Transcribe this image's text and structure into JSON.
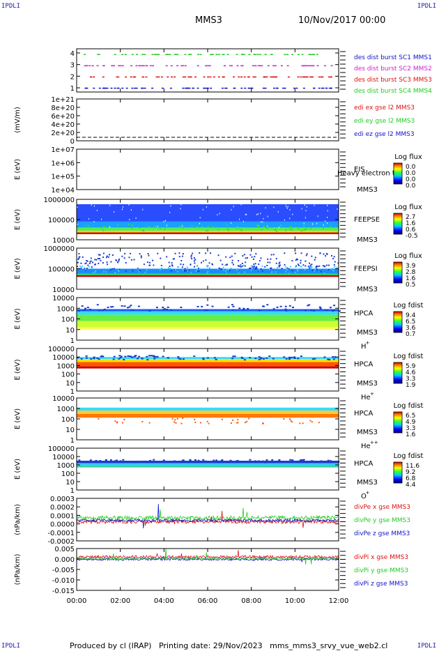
{
  "corner_label": "IPDLI",
  "header": {
    "spacecraft": "MMS3",
    "date_time": "10/Nov/2017 00:00"
  },
  "footer": {
    "text": "Produced by cl (IRAP)   Printing date: 29/Nov/2023   mms_mms3_srvy_vue_web2.cl"
  },
  "time_axis": {
    "ticks": [
      "00:00",
      "02:00",
      "04:00",
      "06:00",
      "08:00",
      "10:00",
      "12:00"
    ]
  },
  "colors": {
    "blue": "#1111cc",
    "magenta": "#cc22cc",
    "red": "#dd1111",
    "green": "#22cc22"
  },
  "panels": [
    {
      "id": "burst",
      "ylabel": "",
      "yticks": [
        "4",
        "3",
        "2",
        "1"
      ],
      "legend": [
        {
          "text": "des dist burst SC1 MMS1",
          "color": "#1111cc"
        },
        {
          "text": "des dist burst SC2 MMS2",
          "color": "#cc22cc"
        },
        {
          "text": "des dist burst SC3 MMS3",
          "color": "#dd1111"
        },
        {
          "text": "des dist burst SC4 MMS4",
          "color": "#22cc22"
        }
      ]
    },
    {
      "id": "edi",
      "ylabel": "(mV/m)",
      "yticks": [
        "1e+21",
        "8e+20",
        "6e+20",
        "4e+20",
        "2e+20",
        "0"
      ],
      "legend": [
        {
          "text": "edi ex gse l2 MMS3",
          "color": "#dd1111"
        },
        {
          "text": "edi ey gse l2 MMS3",
          "color": "#22cc22"
        },
        {
          "text": "edi ez gse l2 MMS3",
          "color": "#1111cc"
        }
      ]
    },
    {
      "id": "eis",
      "ylabel": "E (eV)",
      "yticks": [
        "1e+07",
        "1e+06",
        "1e+05",
        "1e+04"
      ],
      "instrument": "EIS",
      "overlay": "Heavy electron to",
      "sc": "MMS3",
      "cb_title": "Log flux",
      "cb_ticks": [
        "0.0",
        "0.0",
        "0.0",
        "0.0"
      ]
    },
    {
      "id": "feepse",
      "ylabel": "E (eV)",
      "yticks": [
        "1000000",
        "100000",
        "10000"
      ],
      "instrument": "FEEPSE",
      "sc": "MMS3",
      "cb_title": "Log flux",
      "cb_ticks": [
        "2.7",
        "1.6",
        "0.6",
        "-0.5"
      ]
    },
    {
      "id": "feepsi",
      "ylabel": "E (eV)",
      "yticks": [
        "1000000",
        "100000",
        "10000"
      ],
      "instrument": "FEEPSI",
      "sc": "MMS3",
      "cb_title": "Log flux",
      "cb_ticks": [
        "3.9",
        "2.8",
        "1.6",
        "0.5"
      ]
    },
    {
      "id": "hpca_h",
      "ylabel": "E (eV)",
      "yticks": [
        "10000",
        "1000",
        "100",
        "10",
        "1"
      ],
      "instrument": "HPCA",
      "sc": "MMS3",
      "species": "H",
      "species_sup": "+",
      "cb_title": "Log fdist",
      "cb_ticks": [
        "9.4",
        "6.5",
        "3.6",
        "0.7"
      ]
    },
    {
      "id": "hpca_hep",
      "ylabel": "E (eV)",
      "yticks": [
        "100000",
        "10000",
        "1000",
        "100",
        "10",
        "1"
      ],
      "instrument": "HPCA",
      "sc": "MMS3",
      "species": "He",
      "species_sup": "+",
      "cb_title": "Log fdist",
      "cb_ticks": [
        "5.9",
        "4.6",
        "3.3",
        "1.9"
      ]
    },
    {
      "id": "hpca_hepp",
      "ylabel": "E (eV)",
      "yticks": [
        "10000",
        "1000",
        "100",
        "10",
        "1"
      ],
      "instrument": "HPCA",
      "sc": "MMS3",
      "species": "He",
      "species_sup": "++",
      "cb_title": "Log fdist",
      "cb_ticks": [
        "6.5",
        "4.9",
        "3.3",
        "1.6"
      ]
    },
    {
      "id": "hpca_o",
      "ylabel": "E (eV)",
      "yticks": [
        "100000",
        "10000",
        "1000",
        "100",
        "10",
        "1"
      ],
      "instrument": "HPCA",
      "sc": "MMS3",
      "species": "O",
      "species_sup": "+",
      "cb_title": "Log fdist",
      "cb_ticks": [
        "11.6",
        "9.2",
        "6.8",
        "4.4"
      ]
    },
    {
      "id": "divpe",
      "ylabel": "(nPa/km)",
      "yticks": [
        "0.0003",
        "0.0002",
        "0.0001",
        "0.0000",
        "-0.0001",
        "-0.0002"
      ],
      "legend": [
        {
          "text": "divPe x gse MMS3",
          "color": "#dd1111"
        },
        {
          "text": "divPe y gse MMS3",
          "color": "#22cc22"
        },
        {
          "text": "divPe z gse MMS3",
          "color": "#1111cc"
        }
      ]
    },
    {
      "id": "divpi",
      "ylabel": "(nPa/km)",
      "yticks": [
        "0.005",
        "0.000",
        "-0.005",
        "-0.010",
        "-0.015"
      ],
      "legend": [
        {
          "text": "divPi x gse MMS3",
          "color": "#dd1111"
        },
        {
          "text": "divPi y gse MMS3",
          "color": "#22cc22"
        },
        {
          "text": "divPi z gse MMS3",
          "color": "#1111cc"
        }
      ]
    }
  ],
  "chart_data": {
    "type": "heatmap",
    "title": "MMS3",
    "time_range": [
      "00:00",
      "12:00"
    ],
    "x": [
      "00:00",
      "02:00",
      "04:00",
      "06:00",
      "08:00",
      "10:00",
      "12:00"
    ],
    "series": [
      {
        "name": "des dist burst SC1 MMS1",
        "panel": "burst"
      },
      {
        "name": "des dist burst SC2 MMS2",
        "panel": "burst"
      },
      {
        "name": "des dist burst SC3 MMS3",
        "panel": "burst"
      },
      {
        "name": "des dist burst SC4 MMS4",
        "panel": "burst"
      },
      {
        "name": "edi ex gse l2 MMS3",
        "panel": "edi",
        "values": [
          0,
          0,
          0,
          0,
          0,
          0,
          0
        ]
      },
      {
        "name": "edi ey gse l2 MMS3",
        "panel": "edi",
        "values": [
          0,
          0,
          0,
          0,
          0,
          0,
          0
        ]
      },
      {
        "name": "edi ez gse l2 MMS3",
        "panel": "edi",
        "values": [
          0,
          0,
          0,
          0,
          0,
          0,
          0
        ]
      },
      {
        "name": "divPe x gse MMS3",
        "panel": "divpe",
        "values": [
          0.0,
          -2e-05,
          -1e-05,
          -2e-05,
          1e-05,
          -1e-05,
          0.0
        ]
      },
      {
        "name": "divPe y gse MMS3",
        "panel": "divpe",
        "values": [
          5e-05,
          6e-05,
          5e-05,
          6e-05,
          7e-05,
          6e-05,
          6e-05
        ]
      },
      {
        "name": "divPe z gse MMS3",
        "panel": "divpe",
        "values": [
          0.0,
          1e-05,
          0.0,
          1e-05,
          0.0,
          1e-05,
          0.0
        ]
      },
      {
        "name": "divPi x gse MMS3",
        "panel": "divpi",
        "values": [
          0.0005,
          0.0006,
          0.0005,
          0.0006,
          0.0005,
          0.0006,
          0.0005
        ]
      },
      {
        "name": "divPi y gse MMS3",
        "panel": "divpi",
        "values": [
          0.0,
          0.0,
          0.0,
          0.0,
          0.0,
          0.0,
          0.0
        ]
      },
      {
        "name": "divPi z gse MMS3",
        "panel": "divpi",
        "values": [
          -0.0003,
          -0.0002,
          -0.0003,
          -0.0002,
          -0.0003,
          -0.0002,
          -0.0003
        ]
      }
    ]
  }
}
